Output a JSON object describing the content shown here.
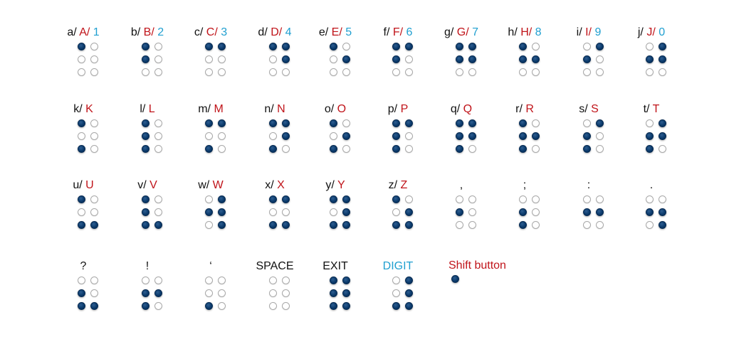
{
  "colors": {
    "black": "#111111",
    "red": "#c0141a",
    "blue": "#1f9fd0",
    "dot_on": "#0b3a6b",
    "dot_off": "#ffffff"
  },
  "cells": [
    {
      "label": [
        {
          "t": "a/ ",
          "c": "black"
        },
        {
          "t": "A/ ",
          "c": "red"
        },
        {
          "t": "1",
          "c": "blue"
        }
      ],
      "dots": [
        1,
        0,
        0,
        0,
        0,
        0
      ]
    },
    {
      "label": [
        {
          "t": "b/ ",
          "c": "black"
        },
        {
          "t": "B/ ",
          "c": "red"
        },
        {
          "t": "2",
          "c": "blue"
        }
      ],
      "dots": [
        1,
        0,
        1,
        0,
        0,
        0
      ]
    },
    {
      "label": [
        {
          "t": "c/ ",
          "c": "black"
        },
        {
          "t": "C/ ",
          "c": "red"
        },
        {
          "t": "3",
          "c": "blue"
        }
      ],
      "dots": [
        1,
        1,
        0,
        0,
        0,
        0
      ]
    },
    {
      "label": [
        {
          "t": "d/ ",
          "c": "black"
        },
        {
          "t": "D/ ",
          "c": "red"
        },
        {
          "t": "4",
          "c": "blue"
        }
      ],
      "dots": [
        1,
        1,
        0,
        1,
        0,
        0
      ]
    },
    {
      "label": [
        {
          "t": "e/ ",
          "c": "black"
        },
        {
          "t": "E/ ",
          "c": "red"
        },
        {
          "t": "5",
          "c": "blue"
        }
      ],
      "dots": [
        1,
        0,
        0,
        1,
        0,
        0
      ]
    },
    {
      "label": [
        {
          "t": "f/ ",
          "c": "black"
        },
        {
          "t": "F/ ",
          "c": "red"
        },
        {
          "t": "6",
          "c": "blue"
        }
      ],
      "dots": [
        1,
        1,
        1,
        0,
        0,
        0
      ]
    },
    {
      "label": [
        {
          "t": "g/ ",
          "c": "black"
        },
        {
          "t": "G/ ",
          "c": "red"
        },
        {
          "t": "7",
          "c": "blue"
        }
      ],
      "dots": [
        1,
        1,
        1,
        1,
        0,
        0
      ]
    },
    {
      "label": [
        {
          "t": "h/ ",
          "c": "black"
        },
        {
          "t": "H/ ",
          "c": "red"
        },
        {
          "t": "8",
          "c": "blue"
        }
      ],
      "dots": [
        1,
        0,
        1,
        1,
        0,
        0
      ]
    },
    {
      "label": [
        {
          "t": "i/ ",
          "c": "black"
        },
        {
          "t": "I/ ",
          "c": "red"
        },
        {
          "t": "9",
          "c": "blue"
        }
      ],
      "dots": [
        0,
        1,
        1,
        0,
        0,
        0
      ]
    },
    {
      "label": [
        {
          "t": "j/ ",
          "c": "black"
        },
        {
          "t": "J/ ",
          "c": "red"
        },
        {
          "t": "0",
          "c": "blue"
        }
      ],
      "dots": [
        0,
        1,
        1,
        1,
        0,
        0
      ]
    },
    {
      "label": [
        {
          "t": "k/ ",
          "c": "black"
        },
        {
          "t": "K",
          "c": "red"
        }
      ],
      "dots": [
        1,
        0,
        0,
        0,
        1,
        0
      ]
    },
    {
      "label": [
        {
          "t": "l/ ",
          "c": "black"
        },
        {
          "t": "L",
          "c": "red"
        }
      ],
      "dots": [
        1,
        0,
        1,
        0,
        1,
        0
      ]
    },
    {
      "label": [
        {
          "t": "m/ ",
          "c": "black"
        },
        {
          "t": "M",
          "c": "red"
        }
      ],
      "dots": [
        1,
        1,
        0,
        0,
        1,
        0
      ]
    },
    {
      "label": [
        {
          "t": "n/ ",
          "c": "black"
        },
        {
          "t": "N",
          "c": "red"
        }
      ],
      "dots": [
        1,
        1,
        0,
        1,
        1,
        0
      ]
    },
    {
      "label": [
        {
          "t": "o/ ",
          "c": "black"
        },
        {
          "t": "O",
          "c": "red"
        }
      ],
      "dots": [
        1,
        0,
        0,
        1,
        1,
        0
      ]
    },
    {
      "label": [
        {
          "t": "p/ ",
          "c": "black"
        },
        {
          "t": "P",
          "c": "red"
        }
      ],
      "dots": [
        1,
        1,
        1,
        0,
        1,
        0
      ]
    },
    {
      "label": [
        {
          "t": "q/ ",
          "c": "black"
        },
        {
          "t": "Q",
          "c": "red"
        }
      ],
      "dots": [
        1,
        1,
        1,
        1,
        1,
        0
      ]
    },
    {
      "label": [
        {
          "t": "r/ ",
          "c": "black"
        },
        {
          "t": "R",
          "c": "red"
        }
      ],
      "dots": [
        1,
        0,
        1,
        1,
        1,
        0
      ]
    },
    {
      "label": [
        {
          "t": "s/ ",
          "c": "black"
        },
        {
          "t": "S",
          "c": "red"
        }
      ],
      "dots": [
        0,
        1,
        1,
        0,
        1,
        0
      ]
    },
    {
      "label": [
        {
          "t": "t/ ",
          "c": "black"
        },
        {
          "t": "T",
          "c": "red"
        }
      ],
      "dots": [
        0,
        1,
        1,
        1,
        1,
        0
      ]
    },
    {
      "label": [
        {
          "t": "u/ ",
          "c": "black"
        },
        {
          "t": "U",
          "c": "red"
        }
      ],
      "dots": [
        1,
        0,
        0,
        0,
        1,
        1
      ]
    },
    {
      "label": [
        {
          "t": "v/ ",
          "c": "black"
        },
        {
          "t": "V",
          "c": "red"
        }
      ],
      "dots": [
        1,
        0,
        1,
        0,
        1,
        1
      ]
    },
    {
      "label": [
        {
          "t": "w/ ",
          "c": "black"
        },
        {
          "t": "W",
          "c": "red"
        }
      ],
      "dots": [
        0,
        1,
        1,
        1,
        0,
        1
      ]
    },
    {
      "label": [
        {
          "t": "x/ ",
          "c": "black"
        },
        {
          "t": "X",
          "c": "red"
        }
      ],
      "dots": [
        1,
        1,
        0,
        0,
        1,
        1
      ]
    },
    {
      "label": [
        {
          "t": "y/ ",
          "c": "black"
        },
        {
          "t": "Y",
          "c": "red"
        }
      ],
      "dots": [
        1,
        1,
        0,
        1,
        1,
        1
      ]
    },
    {
      "label": [
        {
          "t": "z/ ",
          "c": "black"
        },
        {
          "t": "Z",
          "c": "red"
        }
      ],
      "dots": [
        1,
        0,
        0,
        1,
        1,
        1
      ]
    },
    {
      "label": [
        {
          "t": ",",
          "c": "black"
        }
      ],
      "dots": [
        0,
        0,
        1,
        0,
        0,
        0
      ]
    },
    {
      "label": [
        {
          "t": ";",
          "c": "black"
        }
      ],
      "dots": [
        0,
        0,
        1,
        0,
        1,
        0
      ]
    },
    {
      "label": [
        {
          "t": ":",
          "c": "black"
        }
      ],
      "dots": [
        0,
        0,
        1,
        1,
        0,
        0
      ]
    },
    {
      "label": [
        {
          "t": ".",
          "c": "black"
        }
      ],
      "dots": [
        0,
        0,
        1,
        1,
        0,
        1
      ]
    },
    {
      "label": [
        {
          "t": "?",
          "c": "black"
        }
      ],
      "dots": [
        0,
        0,
        1,
        0,
        1,
        1
      ]
    },
    {
      "label": [
        {
          "t": "!",
          "c": "black"
        }
      ],
      "dots": [
        0,
        0,
        1,
        1,
        1,
        0
      ]
    },
    {
      "label": [
        {
          "t": "‘",
          "c": "black"
        }
      ],
      "dots": [
        0,
        0,
        0,
        0,
        1,
        0
      ]
    },
    {
      "label": [
        {
          "t": "SPACE",
          "c": "black"
        }
      ],
      "dots": [
        0,
        0,
        0,
        0,
        0,
        0
      ]
    },
    {
      "label": [
        {
          "t": "EXIT",
          "c": "black"
        }
      ],
      "dots": [
        1,
        1,
        1,
        1,
        1,
        1
      ]
    },
    {
      "label": [
        {
          "t": "DIGIT",
          "c": "blue"
        }
      ],
      "dots": [
        0,
        1,
        0,
        1,
        1,
        1
      ]
    }
  ],
  "shift_legend": {
    "label": "Shift button",
    "color": "red"
  }
}
